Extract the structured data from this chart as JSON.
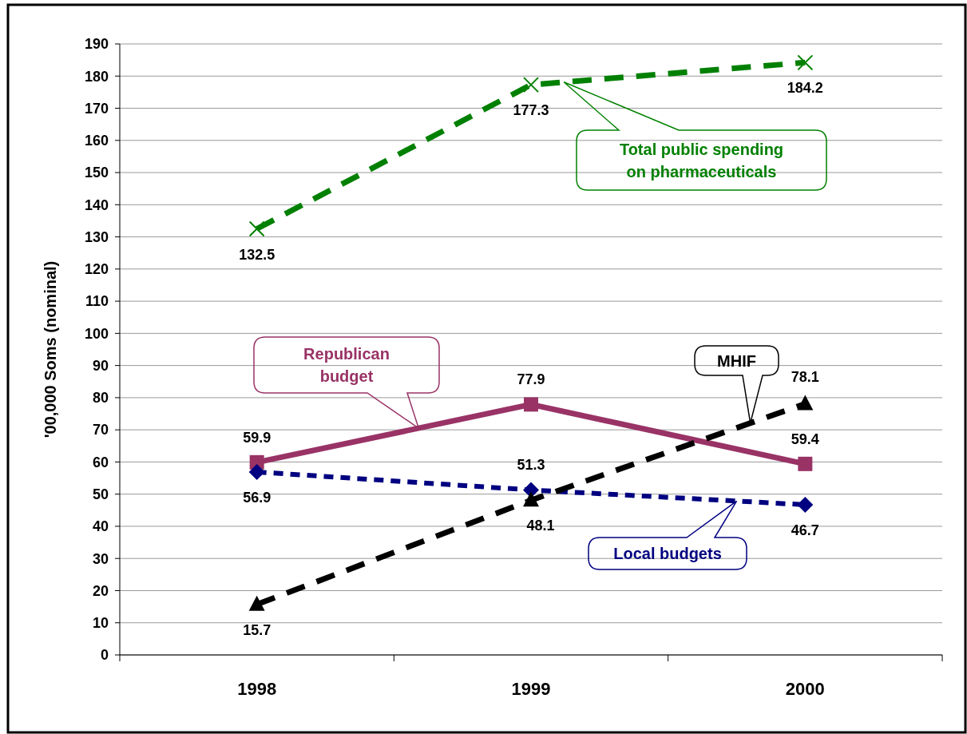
{
  "chart_data": {
    "type": "line",
    "ylabel": "'00,000 Soms (nominal)",
    "categories": [
      "1998",
      "1999",
      "2000"
    ],
    "ylim": [
      0,
      190
    ],
    "yticks": [
      0,
      10,
      20,
      30,
      40,
      50,
      60,
      70,
      80,
      90,
      100,
      110,
      120,
      130,
      140,
      150,
      160,
      170,
      180,
      190
    ],
    "grid": "y",
    "data_labels": true,
    "series": [
      {
        "name": "Total public spending on pharmaceuticals",
        "color": "#008000",
        "values": [
          132.5,
          177.3,
          184.2
        ],
        "marker": "cross",
        "line_style": "dashed"
      },
      {
        "name": "Republican budget",
        "color": "#993366",
        "values": [
          59.9,
          77.9,
          59.4
        ],
        "marker": "square",
        "line_style": "solid"
      },
      {
        "name": "Local budgets",
        "color": "#000080",
        "values": [
          56.9,
          51.3,
          46.7
        ],
        "marker": "diamond",
        "line_style": "dotted"
      },
      {
        "name": "MHIF",
        "color": "#000000",
        "values": [
          15.7,
          48.1,
          78.1
        ],
        "marker": "triangle",
        "line_style": "dashed"
      }
    ]
  }
}
